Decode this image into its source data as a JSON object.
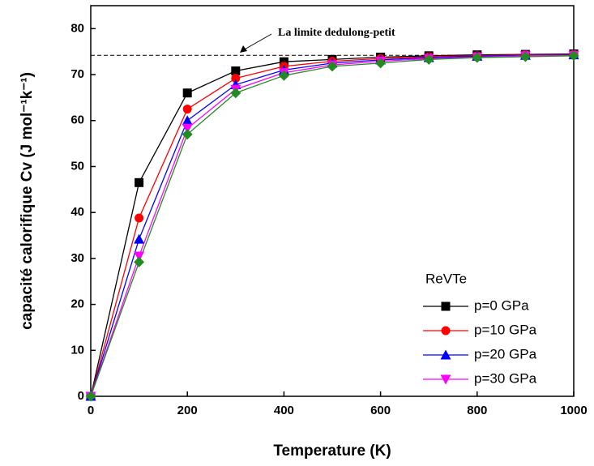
{
  "chart_data": {
    "type": "line",
    "x_label": "Temperature (K)",
    "y_label": "capacité calorifique Cv (J mol⁻¹k⁻¹)",
    "legend_title": "ReVTe",
    "annotation": "La limite dedulong-petit",
    "reference_line": 74.2,
    "x": [
      0,
      100,
      200,
      300,
      400,
      500,
      600,
      700,
      800,
      900,
      1000
    ],
    "xlim": [
      0,
      1000
    ],
    "xticks": [
      0,
      200,
      400,
      600,
      800,
      1000
    ],
    "ylim": [
      0,
      85
    ],
    "yticks": [
      0,
      10,
      20,
      30,
      40,
      50,
      60,
      70,
      80
    ],
    "legend": "lower right",
    "series": [
      {
        "name": "p=0 GPa",
        "color": "#000000",
        "marker": "square",
        "values": [
          0,
          46.5,
          66,
          70.8,
          72.8,
          73.3,
          73.8,
          74.1,
          74.3,
          74.4,
          74.5
        ]
      },
      {
        "name": "p=10 GPa",
        "color": "#ff0000",
        "marker": "circle",
        "values": [
          0,
          38.8,
          62.5,
          69.2,
          71.8,
          72.9,
          73.5,
          73.9,
          74.1,
          74.3,
          74.4
        ]
      },
      {
        "name": "p=20 GPa",
        "color": "#0000ff",
        "marker": "triangle-up",
        "values": [
          0,
          34.2,
          60,
          67.8,
          71,
          72.5,
          73.2,
          73.7,
          74,
          74.2,
          74.3
        ]
      },
      {
        "name": "p=30 GPa",
        "color": "#ff00ff",
        "marker": "triangle-down",
        "values": [
          0,
          30.5,
          58.3,
          66.8,
          70.4,
          72.1,
          72.9,
          73.5,
          73.8,
          74.1,
          74.2
        ]
      },
      {
        "color": "#228b22",
        "marker": "diamond",
        "values": [
          0,
          29.2,
          57,
          66,
          69.8,
          71.8,
          72.5,
          73.3,
          73.7,
          73.9,
          74.1
        ]
      }
    ]
  }
}
